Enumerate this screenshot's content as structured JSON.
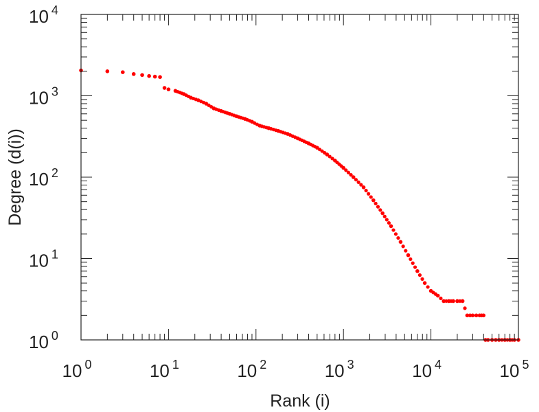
{
  "chart_data": {
    "type": "scatter",
    "title": "",
    "xlabel": "Rank (i)",
    "ylabel": "Degree (d(i))",
    "xscale": "log",
    "yscale": "log",
    "xlim": [
      1,
      100000
    ],
    "ylim": [
      1,
      10000
    ],
    "grid": false,
    "legend": "none",
    "x_ticks": [
      {
        "base": "10",
        "exp": "0",
        "value": 1
      },
      {
        "base": "10",
        "exp": "1",
        "value": 10
      },
      {
        "base": "10",
        "exp": "2",
        "value": 100
      },
      {
        "base": "10",
        "exp": "3",
        "value": 1000
      },
      {
        "base": "10",
        "exp": "4",
        "value": 10000
      },
      {
        "base": "10",
        "exp": "5",
        "value": 100000
      }
    ],
    "y_ticks": [
      {
        "base": "10",
        "exp": "0",
        "value": 1
      },
      {
        "base": "10",
        "exp": "1",
        "value": 10
      },
      {
        "base": "10",
        "exp": "2",
        "value": 100
      },
      {
        "base": "10",
        "exp": "3",
        "value": 1000
      },
      {
        "base": "10",
        "exp": "4",
        "value": 10000
      }
    ],
    "colors": {
      "points": "#ff0000",
      "axes": "#222222"
    },
    "series": [
      {
        "x": [
          1,
          2,
          3,
          4,
          5,
          6,
          7,
          8,
          9,
          10,
          12,
          15,
          18,
          22,
          27,
          33,
          40,
          50,
          60,
          75,
          90,
          110,
          140,
          180,
          230,
          300,
          400,
          500,
          650,
          800,
          1000,
          1300,
          1700,
          2200,
          2800,
          3500,
          4500,
          5500,
          7000,
          8500,
          10000,
          12000,
          14000,
          16000,
          18000,
          20000,
          23000,
          26000,
          28000,
          30000,
          33000,
          36000,
          38000,
          40000,
          42000,
          45000,
          50000,
          55000,
          60000,
          70000,
          80000,
          90000,
          100000
        ],
        "y": [
          2050,
          2000,
          1950,
          1850,
          1800,
          1750,
          1720,
          1700,
          1250,
          1200,
          1150,
          1050,
          950,
          880,
          800,
          700,
          650,
          600,
          560,
          520,
          480,
          430,
          400,
          370,
          340,
          300,
          260,
          230,
          190,
          160,
          130,
          100,
          75,
          52,
          36,
          25,
          16,
          11,
          7,
          5,
          4,
          3.5,
          3,
          3,
          3,
          3,
          3,
          2,
          2,
          2,
          2,
          2,
          2,
          2,
          1,
          1,
          1,
          1,
          1,
          1,
          1,
          1,
          1
        ]
      }
    ]
  }
}
